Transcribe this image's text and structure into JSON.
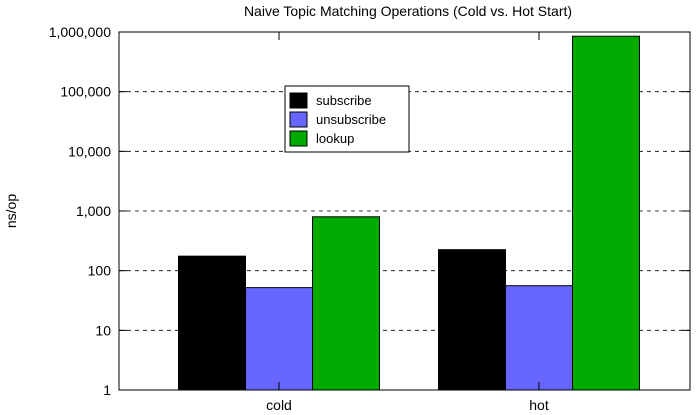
{
  "chart_data": {
    "type": "bar",
    "title": "Naive Topic Matching Operations (Cold vs. Hot Start)",
    "xlabel": "",
    "ylabel": "ns/op",
    "y_scale": "log",
    "ylim": [
      1,
      1000000
    ],
    "y_ticks": [
      {
        "value": 1,
        "label": "1"
      },
      {
        "value": 10,
        "label": "10"
      },
      {
        "value": 100,
        "label": "100"
      },
      {
        "value": 1000,
        "label": "1,000"
      },
      {
        "value": 10000,
        "label": "10,000"
      },
      {
        "value": 100000,
        "label": "100,000"
      },
      {
        "value": 1000000,
        "label": "1,000,000"
      }
    ],
    "grid": "horizontal dashed",
    "legend_position": "top-center",
    "categories": [
      "cold",
      "hot"
    ],
    "series": [
      {
        "name": "subscribe",
        "color": "#000000",
        "values": [
          175,
          225
        ]
      },
      {
        "name": "unsubscribe",
        "color": "#6666ff",
        "values": [
          52,
          56
        ]
      },
      {
        "name": "lookup",
        "color": "#00aa00",
        "values": [
          800,
          850000
        ]
      }
    ]
  }
}
